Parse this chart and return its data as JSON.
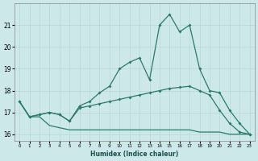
{
  "xlabel": "Humidex (Indice chaleur)",
  "x": [
    0,
    1,
    2,
    3,
    4,
    5,
    6,
    7,
    8,
    9,
    10,
    11,
    12,
    13,
    14,
    15,
    16,
    17,
    18,
    19,
    20,
    21,
    22,
    23
  ],
  "y_peak": [
    17.5,
    16.8,
    16.9,
    17.0,
    16.9,
    16.6,
    17.3,
    17.5,
    17.9,
    18.2,
    19.0,
    19.3,
    19.5,
    18.5,
    21.0,
    21.5,
    20.7,
    21.0,
    19.0,
    18.0,
    17.9,
    17.1,
    16.5,
    16.0
  ],
  "y_mid": [
    17.5,
    16.8,
    16.9,
    17.0,
    16.9,
    16.6,
    17.2,
    17.3,
    17.4,
    17.5,
    17.6,
    17.7,
    17.8,
    17.9,
    18.0,
    18.1,
    18.15,
    18.2,
    18.0,
    17.8,
    17.1,
    16.5,
    16.1,
    16.0
  ],
  "y_flat": [
    17.5,
    16.8,
    16.8,
    16.4,
    16.3,
    16.2,
    16.2,
    16.2,
    16.2,
    16.2,
    16.2,
    16.2,
    16.2,
    16.2,
    16.2,
    16.2,
    16.2,
    16.2,
    16.1,
    16.1,
    16.1,
    16.0,
    16.0,
    16.0
  ],
  "bg_color": "#cce8e8",
  "line_color": "#2a7a6a",
  "grid_color": "#b8d8d8",
  "ylim": [
    15.7,
    22.0
  ],
  "yticks": [
    16,
    17,
    18,
    19,
    20,
    21
  ],
  "xlim": [
    -0.5,
    23.5
  ]
}
